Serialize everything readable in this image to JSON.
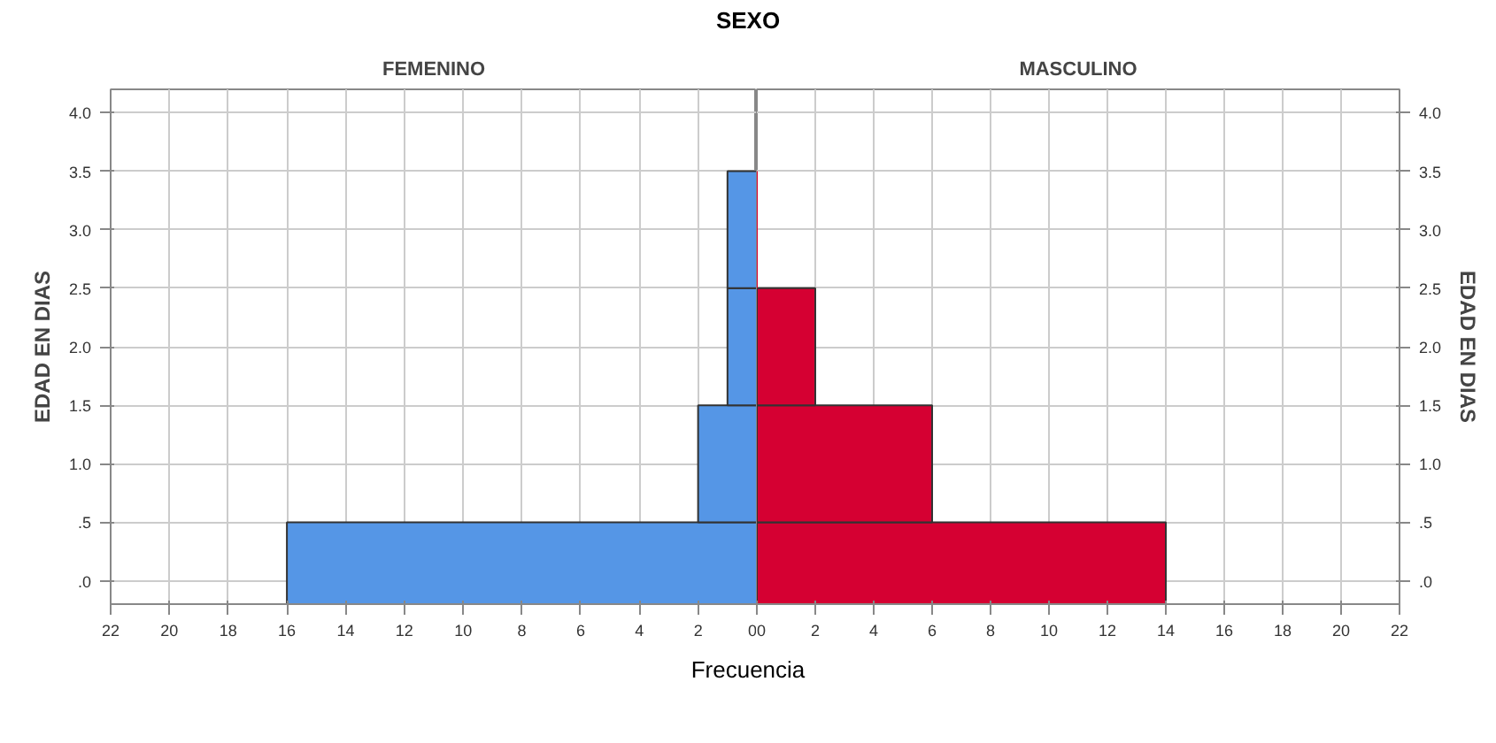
{
  "chart_data": [
    {
      "type": "histogram",
      "orientation": "horizontal",
      "title": "FEMENINO",
      "annotations": [
        "SEXO"
      ],
      "xlabel": "Frecuencia",
      "ylabel": "EDAD EN DIAS",
      "bins": [
        -0.2,
        0.5,
        1.5,
        2.5,
        3.5
      ],
      "values": [
        16,
        2,
        1,
        1
      ],
      "colors": [
        "#5596e6",
        "#5596e6",
        "#5596e6",
        "#5596e6"
      ],
      "xlim": [
        22,
        0
      ],
      "xticks": [
        22,
        20,
        18,
        16,
        14,
        12,
        10,
        8,
        6,
        4,
        2,
        0
      ],
      "ylim": [
        -0.2,
        4.2
      ],
      "yticks": [
        {
          "value": 0,
          "label": ".0"
        },
        {
          "value": 0.5,
          "label": ".5"
        },
        {
          "value": 1,
          "label": "1.0"
        },
        {
          "value": 1.5,
          "label": "1.5"
        },
        {
          "value": 2,
          "label": "2.0"
        },
        {
          "value": 2.5,
          "label": "2.5"
        },
        {
          "value": 3,
          "label": "3.0"
        },
        {
          "value": 3.5,
          "label": "3.5"
        },
        {
          "value": 4,
          "label": "4.0"
        }
      ],
      "grid": true
    },
    {
      "type": "histogram",
      "orientation": "horizontal",
      "title": "MASCULINO",
      "ylabel": "EDAD EN DIAS",
      "bins": [
        -0.2,
        0.5,
        1.5,
        2.5,
        3.5
      ],
      "values": [
        14,
        6,
        2,
        0
      ],
      "colors": [
        "#d50032",
        "#d50032",
        "#d50032",
        "#d50032"
      ],
      "xlim": [
        0,
        22
      ],
      "xticks": [
        0,
        2,
        4,
        6,
        8,
        10,
        12,
        14,
        16,
        18,
        20,
        22
      ],
      "ylim": [
        -0.2,
        4.2
      ],
      "yticks": [
        {
          "value": 0,
          "label": ".0"
        },
        {
          "value": 0.5,
          "label": ".5"
        },
        {
          "value": 1,
          "label": "1.0"
        },
        {
          "value": 1.5,
          "label": "1.5"
        },
        {
          "value": 2,
          "label": "2.0"
        },
        {
          "value": 2.5,
          "label": "2.5"
        },
        {
          "value": 3,
          "label": "3.0"
        },
        {
          "value": 3.5,
          "label": "3.5"
        },
        {
          "value": 4,
          "label": "4.0"
        }
      ],
      "grid": true
    }
  ]
}
